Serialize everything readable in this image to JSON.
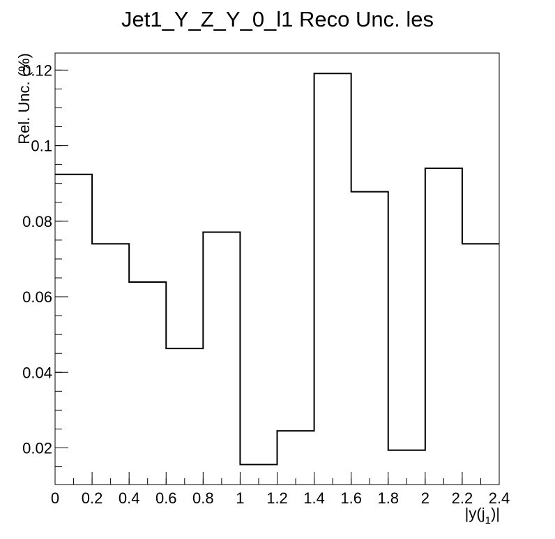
{
  "chart_data": {
    "type": "step",
    "title": "Jet1_Y_Z_Y_0_l1 Reco Unc. les",
    "xlabel": "|y(j",
    "xlabel_sub": "1",
    "xlabel_end": ")|",
    "ylabel": "Rel. Unc. (%)",
    "xlim": [
      0,
      2.4
    ],
    "ylim": [
      0.0103,
      0.1245
    ],
    "x_ticks": [
      0,
      0.2,
      0.4,
      0.6,
      0.8,
      1,
      1.2,
      1.4,
      1.6,
      1.8,
      2,
      2.2,
      2.4
    ],
    "x_tick_labels": [
      "0",
      "0.2",
      "0.4",
      "0.6",
      "0.8",
      "1",
      "1.2",
      "1.4",
      "1.6",
      "1.8",
      "2",
      "2.2",
      "2.4"
    ],
    "y_ticks": [
      0.02,
      0.04,
      0.06,
      0.08,
      0.1,
      0.12
    ],
    "y_tick_labels": [
      "0.02",
      "0.04",
      "0.06",
      "0.08",
      "0.1",
      "0.12"
    ],
    "bin_edges": [
      0,
      0.2,
      0.4,
      0.6,
      0.8,
      1.0,
      1.2,
      1.4,
      1.6,
      1.8,
      2.0,
      2.2,
      2.4
    ],
    "values": [
      0.0924,
      0.074,
      0.0639,
      0.0463,
      0.0771,
      0.0156,
      0.0245,
      0.1191,
      0.0878,
      0.0194,
      0.094,
      0.074
    ],
    "line_color": "#000000",
    "grid": false,
    "legend": "none"
  }
}
